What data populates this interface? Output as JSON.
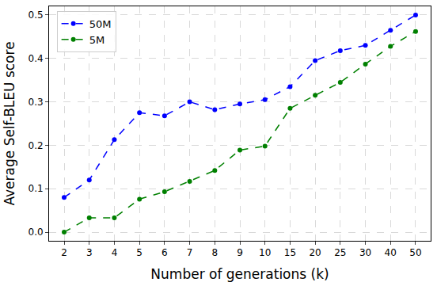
{
  "chart_data": {
    "type": "line",
    "x_label": "Number of generations (k)",
    "y_label": "Average Self-BLEU score",
    "categories": [
      "2",
      "3",
      "4",
      "5",
      "6",
      "7",
      "8",
      "9",
      "10",
      "15",
      "20",
      "25",
      "30",
      "40",
      "50"
    ],
    "series": [
      {
        "name": "50M",
        "color": "#0000ff",
        "marker": "circle",
        "line_style": "dash",
        "values": [
          0.08,
          0.12,
          0.213,
          0.275,
          0.268,
          0.3,
          0.282,
          0.295,
          0.305,
          0.335,
          0.395,
          0.418,
          0.43,
          0.465,
          0.5
        ]
      },
      {
        "name": "5M",
        "color": "#008000",
        "marker": "circle",
        "line_style": "dash",
        "values": [
          0.0,
          0.033,
          0.033,
          0.076,
          0.093,
          0.117,
          0.142,
          0.189,
          0.198,
          0.285,
          0.315,
          0.345,
          0.387,
          0.428,
          0.462
        ]
      }
    ],
    "ylim": [
      -0.02,
      0.52
    ],
    "yticks": [
      {
        "value": 0,
        "label": "0.0"
      },
      0.1,
      0.2,
      0.3,
      0.4,
      0.5
    ],
    "grid": true,
    "legend": "upper left"
  }
}
